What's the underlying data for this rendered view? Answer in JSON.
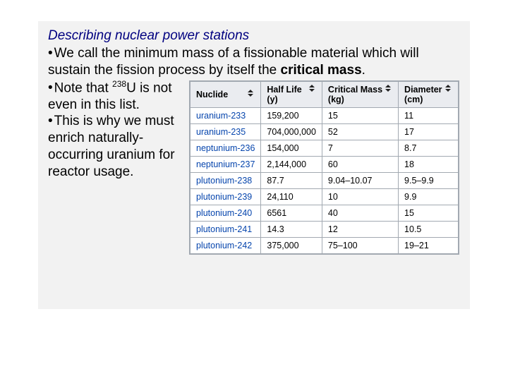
{
  "title": "Describing nuclear power stations",
  "para1_a": "We call the minimum mass of a fissionable material which will sustain the fission process by itself the ",
  "para1_b": "critical mass",
  "para1_c": ".",
  "para2_a": "Note that ",
  "para2_sup": "238",
  "para2_b": "U is not even in this list.",
  "para3": "This is why we must  enrich naturally-occurring uranium for reactor usage.",
  "table": {
    "headers": {
      "nuclide": "Nuclide",
      "halflife_top": "Half Life",
      "halflife_sub": "(y)",
      "mass_top": "Critical Mass",
      "mass_sub": "(kg)",
      "diam_top": "Diameter",
      "diam_sub": "(cm)"
    },
    "rows": [
      {
        "n": "uranium-233",
        "h": "159,200",
        "m": "15",
        "d": "11"
      },
      {
        "n": "uranium-235",
        "h": "704,000,000",
        "m": "52",
        "d": "17"
      },
      {
        "n": "neptunium-236",
        "h": "154,000",
        "m": "7",
        "d": "8.7"
      },
      {
        "n": "neptunium-237",
        "h": "2,144,000",
        "m": "60",
        "d": "18"
      },
      {
        "n": "plutonium-238",
        "h": "87.7",
        "m": "9.04–10.07",
        "d": "9.5–9.9"
      },
      {
        "n": "plutonium-239",
        "h": "24,110",
        "m": "10",
        "d": "9.9"
      },
      {
        "n": "plutonium-240",
        "h": "6561",
        "m": "40",
        "d": "15"
      },
      {
        "n": "plutonium-241",
        "h": "14.3",
        "m": "12",
        "d": "10.5"
      },
      {
        "n": "plutonium-242",
        "h": "375,000",
        "m": "75–100",
        "d": "19–21"
      }
    ]
  },
  "colors": {
    "title": "#000080",
    "link": "#0645ad",
    "th_bg": "#eaecf0",
    "border": "#a2a9b1",
    "slide_bg": "#f2f2f2"
  }
}
